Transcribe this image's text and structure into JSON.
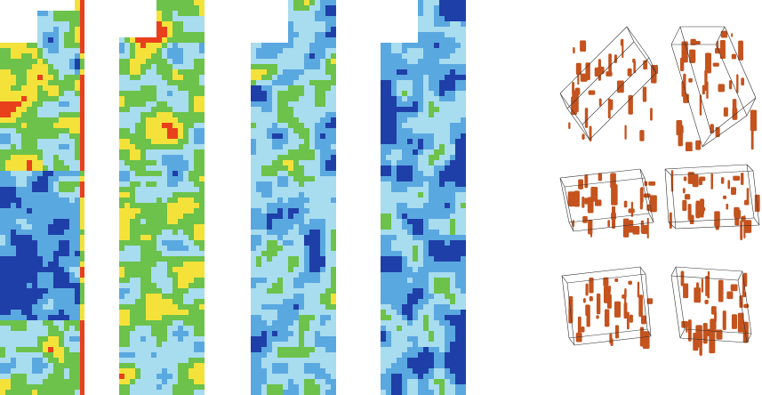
{
  "palette": {
    "low": "#1f3fa8",
    "mid_low": "#5aa8e0",
    "mid": "#a8dcef",
    "mid_high": "#6cc24a",
    "high": "#f4e23a",
    "very_high": "#e8401c",
    "cube_body": "#c4531e",
    "cube_edge": "#333333"
  },
  "strips": [
    {
      "id": "strip-1"
    },
    {
      "id": "strip-2"
    },
    {
      "id": "strip-3"
    },
    {
      "id": "strip-4"
    }
  ],
  "cube_views": [
    {
      "id": "view-1"
    },
    {
      "id": "view-2"
    },
    {
      "id": "view-3"
    },
    {
      "id": "view-4"
    },
    {
      "id": "view-5"
    },
    {
      "id": "view-6"
    }
  ]
}
